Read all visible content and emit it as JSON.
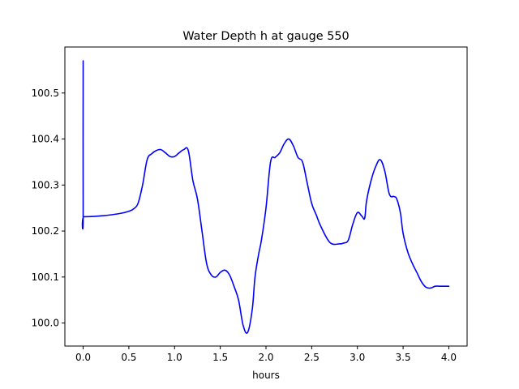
{
  "chart_data": {
    "type": "line",
    "title": "Water Depth h at gauge 550",
    "xlabel": "hours",
    "ylabel": "",
    "xlim": [
      -0.2,
      4.2
    ],
    "ylim": [
      99.95,
      100.6
    ],
    "xticks": [
      {
        "value": 0.0,
        "label": "0.0"
      },
      {
        "value": 0.5,
        "label": "0.5"
      },
      {
        "value": 1.0,
        "label": "1.0"
      },
      {
        "value": 1.5,
        "label": "1.5"
      },
      {
        "value": 2.0,
        "label": "2.0"
      },
      {
        "value": 2.5,
        "label": "2.5"
      },
      {
        "value": 3.0,
        "label": "3.0"
      },
      {
        "value": 3.5,
        "label": "3.5"
      },
      {
        "value": 4.0,
        "label": "4.0"
      }
    ],
    "yticks": [
      {
        "value": 100.0,
        "label": "100.0"
      },
      {
        "value": 100.1,
        "label": "100.1"
      },
      {
        "value": 100.2,
        "label": "100.2"
      },
      {
        "value": 100.3,
        "label": "100.3"
      },
      {
        "value": 100.4,
        "label": "100.4"
      },
      {
        "value": 100.5,
        "label": "100.5"
      }
    ],
    "grid": false,
    "colors": {
      "line": "#0000ff",
      "axes": "#000000",
      "background": "#ffffff"
    },
    "series": [
      {
        "x": [
          0.0,
          0.0,
          0.01,
          0.2,
          0.4,
          0.5,
          0.55,
          0.6,
          0.65,
          0.7,
          0.75,
          0.8,
          0.85,
          0.9,
          0.95,
          1.0,
          1.05,
          1.1,
          1.15,
          1.2,
          1.25,
          1.3,
          1.35,
          1.4,
          1.45,
          1.5,
          1.55,
          1.6,
          1.65,
          1.7,
          1.75,
          1.8,
          1.85,
          1.88,
          1.92,
          1.95,
          2.0,
          2.05,
          2.1,
          2.15,
          2.2,
          2.25,
          2.3,
          2.35,
          2.4,
          2.45,
          2.5,
          2.55,
          2.6,
          2.7,
          2.8,
          2.85,
          2.9,
          2.95,
          3.0,
          3.05,
          3.08,
          3.1,
          3.15,
          3.2,
          3.25,
          3.3,
          3.35,
          3.4,
          3.43,
          3.47,
          3.5,
          3.55,
          3.6,
          3.65,
          3.7,
          3.75,
          3.8,
          3.85,
          3.9,
          3.95,
          4.0
        ],
        "y": [
          100.57,
          100.232,
          100.231,
          100.233,
          100.238,
          100.243,
          100.248,
          100.26,
          100.3,
          100.355,
          100.368,
          100.375,
          100.377,
          100.37,
          100.362,
          100.362,
          100.37,
          100.377,
          100.375,
          100.31,
          100.27,
          100.2,
          100.13,
          100.105,
          100.1,
          100.11,
          100.115,
          100.105,
          100.08,
          100.05,
          99.995,
          99.98,
          100.03,
          100.1,
          100.15,
          100.18,
          100.25,
          100.35,
          100.36,
          100.37,
          100.39,
          100.4,
          100.385,
          100.36,
          100.35,
          100.305,
          100.26,
          100.235,
          100.21,
          100.175,
          100.172,
          100.174,
          100.18,
          100.215,
          100.24,
          100.232,
          100.228,
          100.265,
          100.31,
          100.34,
          100.355,
          100.33,
          100.28,
          100.275,
          100.27,
          100.24,
          100.195,
          100.155,
          100.13,
          100.11,
          100.09,
          100.078,
          100.076,
          100.08,
          100.08,
          100.08,
          100.08
        ]
      }
    ]
  }
}
